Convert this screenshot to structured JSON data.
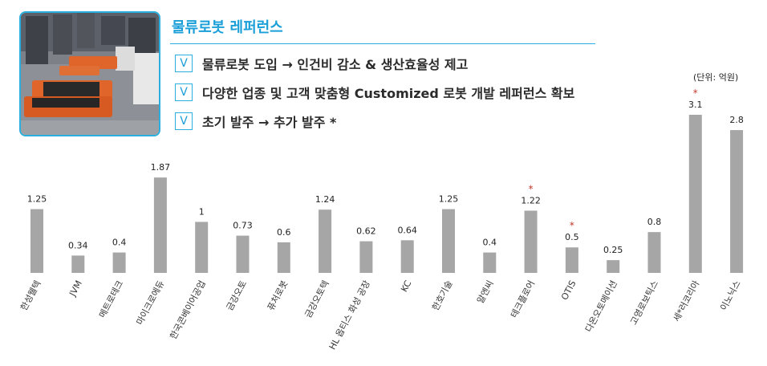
{
  "header": {
    "title": "물류로봇 레퍼런스",
    "bullet_mark": "V",
    "bullets": [
      "물류로봇 도입 → 인건비 감소 & 생산효율성 제고",
      "다양한 업종 및 고객 맞춤형 Customized 로봇 개발 레퍼런스 확보",
      "초기 발주 → 추가 발주 *"
    ]
  },
  "photo": {
    "icon": "warehouse-robots-photo"
  },
  "unit_label": "(단위: 억원)",
  "chart_data": {
    "type": "bar",
    "title": "",
    "xlabel": "",
    "ylabel": "",
    "unit": "억원",
    "categories": [
      "한성웰텍",
      "JVM",
      "메트로테크",
      "마이크로에듀",
      "한국콘베이어공업",
      "금강오토",
      "퓨처로봇",
      "금강오토텍",
      "HL 옵티스 화성 공장",
      "KC",
      "한호기술",
      "알엔씨",
      "테크플로어",
      "OTIS",
      "다온오토메이션",
      "고영로보틱스",
      "세*러코리아",
      "이노닉스"
    ],
    "values": [
      1.25,
      0.34,
      0.4,
      1.87,
      1,
      0.73,
      0.6,
      1.24,
      0.62,
      0.64,
      1.25,
      0.4,
      1.22,
      0.5,
      0.25,
      0.8,
      3.1,
      2.8
    ],
    "value_labels": [
      "1.25",
      "0.34",
      "0.4",
      "1.87",
      "1",
      "0.73",
      "0.6",
      "1.24",
      "0.62",
      "0.64",
      "1.25",
      "0.4",
      "1.22",
      "0.5",
      "0.25",
      "0.8",
      "3.1",
      "2.8"
    ],
    "marked": [
      "",
      "",
      "",
      "",
      "",
      "",
      "",
      "",
      "",
      "",
      "",
      "",
      "*",
      "*",
      "",
      "",
      "*",
      ""
    ],
    "ylim": [
      0,
      3.1
    ],
    "grid": false,
    "colors": {
      "bar": "#a6a6a6",
      "mark": "#c0392b",
      "label": "#222222"
    }
  }
}
